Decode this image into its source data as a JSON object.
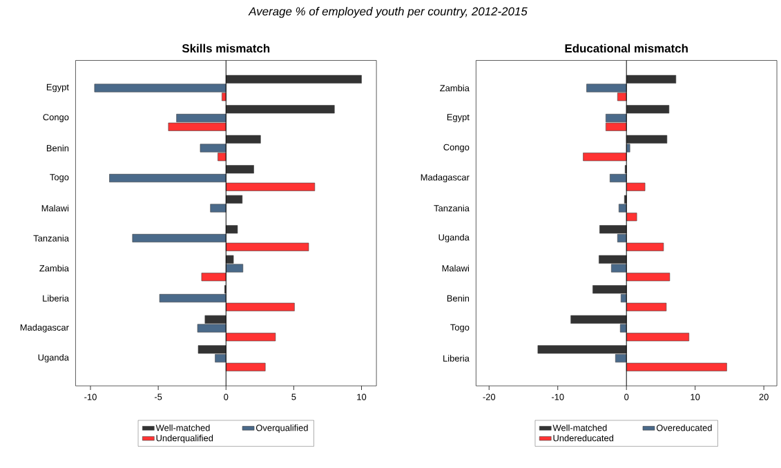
{
  "chart_data": [
    {
      "type": "bar",
      "orientation": "horizontal",
      "title": "Skills mismatch",
      "annotations": [
        "Average % of employed youth per country, 2012-2015"
      ],
      "categories": [
        "Egypt",
        "Congo",
        "Benin",
        "Togo",
        "Malawi",
        "Tanzania",
        "Zambia",
        "Liberia",
        "Madagascar",
        "Uganda"
      ],
      "series": [
        {
          "name": "Well-matched",
          "color": "#333333",
          "values": [
            10.0,
            8.0,
            2.55,
            2.05,
            1.2,
            0.85,
            0.55,
            -0.1,
            -1.55,
            -2.05
          ]
        },
        {
          "name": "Overqualified",
          "color": "#4a6a8a",
          "values": [
            -9.7,
            -3.65,
            -1.9,
            -8.6,
            -1.15,
            -6.9,
            1.25,
            -4.9,
            -2.1,
            -0.8
          ]
        },
        {
          "name": "Underqualified",
          "color": "#ff3333",
          "values": [
            -0.3,
            -4.25,
            -0.6,
            6.55,
            null,
            6.1,
            -1.8,
            5.05,
            3.65,
            2.9
          ]
        }
      ],
      "xlim": [
        -11.1,
        11.1
      ],
      "xticks": [
        -10,
        -5,
        0,
        5,
        10
      ],
      "ref_lines": [
        {
          "axis": "x",
          "value": 0
        }
      ],
      "legend": "bottom"
    },
    {
      "type": "bar",
      "orientation": "horizontal",
      "title": "Educational mismatch",
      "categories": [
        "Zambia",
        "Egypt",
        "Congo",
        "Madagascar",
        "Tanzania",
        "Uganda",
        "Malawi",
        "Benin",
        "Togo",
        "Liberia"
      ],
      "series": [
        {
          "name": "Well-matched",
          "color": "#333333",
          "values": [
            7.2,
            6.2,
            5.9,
            -0.2,
            -0.3,
            -3.9,
            -4.0,
            -4.9,
            -8.1,
            -12.9
          ]
        },
        {
          "name": "Overeducated",
          "color": "#4a6a8a",
          "values": [
            -5.8,
            -3.0,
            0.5,
            -2.4,
            -1.1,
            -1.3,
            -2.2,
            -0.8,
            -0.9,
            -1.6
          ]
        },
        {
          "name": "Undereducated",
          "color": "#ff3333",
          "values": [
            -1.3,
            -3.0,
            -6.3,
            2.7,
            1.5,
            5.4,
            6.3,
            5.8,
            9.1,
            14.6
          ]
        }
      ],
      "xlim": [
        -21.9,
        21.9
      ],
      "xticks": [
        -20,
        -10,
        0,
        10,
        20
      ],
      "ref_lines": [
        {
          "axis": "x",
          "value": 0
        }
      ],
      "legend": "bottom"
    }
  ]
}
